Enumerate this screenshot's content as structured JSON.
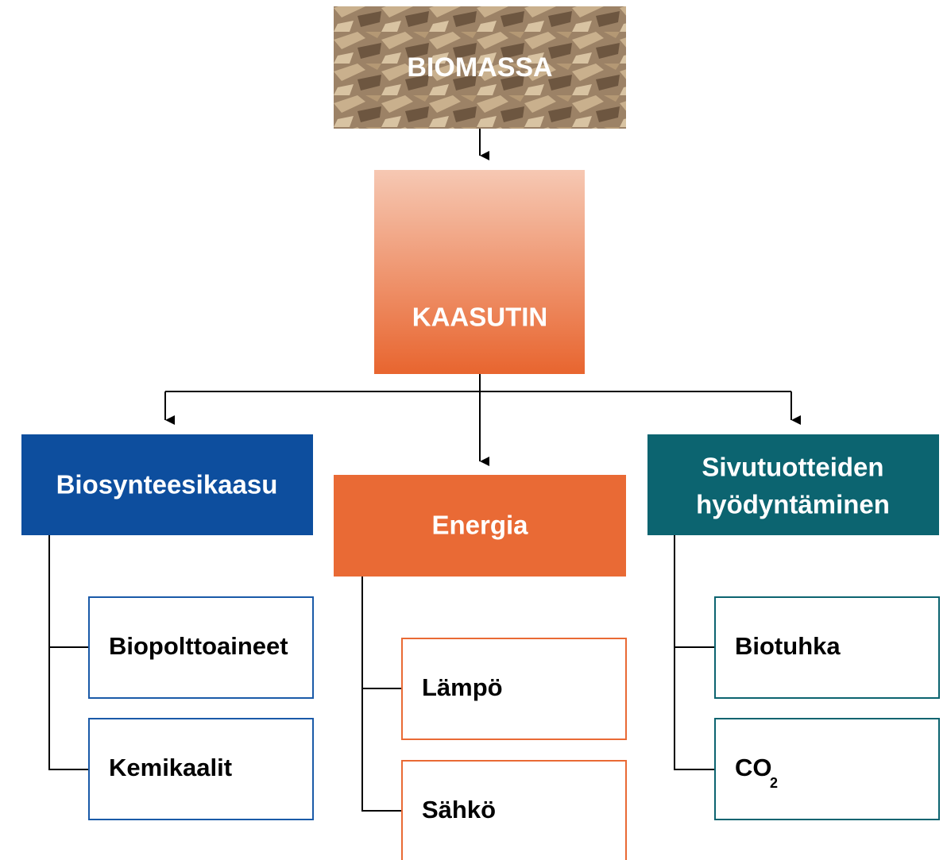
{
  "nodes": [
    {
      "label": "BIOMASSA"
    },
    {
      "label": "KAASUTIN"
    },
    {
      "label": "Biosynteesikaasu",
      "children": [
        {
          "label": "Biopolttoaineet"
        },
        {
          "label": "Kemikaalit"
        }
      ]
    },
    {
      "label": "Energia",
      "children": [
        {
          "label": "Lämpö"
        },
        {
          "label": "Sähkö"
        }
      ]
    },
    {
      "label": [
        "Sivutuotteiden",
        "hyödyntäminen"
      ],
      "children": [
        {
          "label": "Biotuhka"
        },
        {
          "label": "CO",
          "subscript": "2"
        }
      ]
    }
  ]
}
